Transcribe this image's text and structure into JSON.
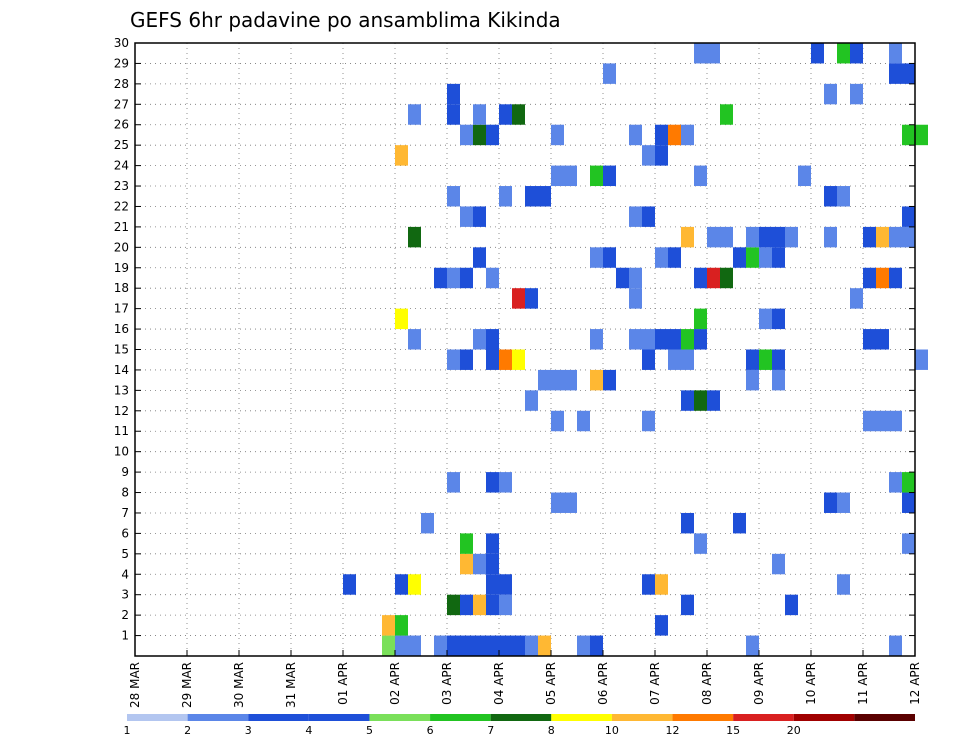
{
  "chart_data": {
    "type": "heatmap",
    "title": "GEFS 6hr padavine po ansamblima Kikinda",
    "xlabel": "",
    "ylabel": "",
    "x_start": "2025-03-28",
    "x_end": "2025-04-12",
    "x_tick_labels": [
      "28 MAR",
      "29 MAR",
      "30 MAR",
      "31 MAR",
      "01 APR",
      "02 APR",
      "03 APR",
      "04 APR",
      "05 APR",
      "06 APR",
      "07 APR",
      "08 APR",
      "09 APR",
      "10 APR",
      "11 APR",
      "12 APR"
    ],
    "y_tick_labels": [
      "1",
      "2",
      "3",
      "4",
      "5",
      "6",
      "7",
      "8",
      "9",
      "10",
      "11",
      "12",
      "13",
      "14",
      "15",
      "16",
      "17",
      "18",
      "19",
      "20",
      "21",
      "22",
      "23",
      "24",
      "25",
      "26",
      "27",
      "28",
      "29",
      "30"
    ],
    "ylim": [
      0,
      30
    ],
    "grid": true,
    "colorbar": {
      "labels": [
        "1",
        "2",
        "3",
        "4",
        "5",
        "6",
        "7",
        "8",
        "10",
        "12",
        "15",
        "20"
      ],
      "colors": [
        "#b3c6f0",
        "#5b86e8",
        "#1e4fd8",
        "#1e4fd8",
        "#7ae05a",
        "#22c422",
        "#116811",
        "#ffff00",
        "#ffb833",
        "#ff7a00",
        "#d92020",
        "#a00000",
        "#5a0000"
      ]
    },
    "cells": [
      {
        "t": "2025-04-01T18",
        "m": 0,
        "v": 4
      },
      {
        "t": "2025-04-02T00",
        "m": 0,
        "v": 1
      },
      {
        "t": "2025-04-02T06",
        "m": 0,
        "v": 1
      },
      {
        "t": "2025-04-02T18",
        "m": 0,
        "v": 1
      },
      {
        "t": "2025-04-03T00",
        "m": 0,
        "v": 2
      },
      {
        "t": "2025-04-03T06",
        "m": 0,
        "v": 3
      },
      {
        "t": "2025-04-03T12",
        "m": 0,
        "v": 3
      },
      {
        "t": "2025-04-03T18",
        "m": 0,
        "v": 3
      },
      {
        "t": "2025-04-04T00",
        "m": 0,
        "v": 2
      },
      {
        "t": "2025-04-04T06",
        "m": 0,
        "v": 3
      },
      {
        "t": "2025-04-04T12",
        "m": 0,
        "v": 1
      },
      {
        "t": "2025-04-04T18",
        "m": 0,
        "v": 9
      },
      {
        "t": "2025-04-05T12",
        "m": 0,
        "v": 1
      },
      {
        "t": "2025-04-05T18",
        "m": 0,
        "v": 2
      },
      {
        "t": "2025-04-08T18",
        "m": 0,
        "v": 1
      },
      {
        "t": "2025-04-11T12",
        "m": 0,
        "v": 1
      },
      {
        "t": "2025-04-01T18",
        "m": 1,
        "v": 9
      },
      {
        "t": "2025-04-02T00",
        "m": 1,
        "v": 5
      },
      {
        "t": "2025-04-07T00",
        "m": 1,
        "v": 3
      },
      {
        "t": "2025-04-03T00",
        "m": 2,
        "v": 6
      },
      {
        "t": "2025-04-03T06",
        "m": 2,
        "v": 2
      },
      {
        "t": "2025-04-03T12",
        "m": 2,
        "v": 9
      },
      {
        "t": "2025-04-03T18",
        "m": 2,
        "v": 3
      },
      {
        "t": "2025-04-04T00",
        "m": 2,
        "v": 1
      },
      {
        "t": "2025-04-07T12",
        "m": 2,
        "v": 2
      },
      {
        "t": "2025-04-09T12",
        "m": 2,
        "v": 2
      },
      {
        "t": "2025-04-01T00",
        "m": 3,
        "v": 2
      },
      {
        "t": "2025-04-02T00",
        "m": 3,
        "v": 2
      },
      {
        "t": "2025-04-02T06",
        "m": 3,
        "v": 7
      },
      {
        "t": "2025-04-03T18",
        "m": 3,
        "v": 2
      },
      {
        "t": "2025-04-04T00",
        "m": 3,
        "v": 2
      },
      {
        "t": "2025-04-06T18",
        "m": 3,
        "v": 3
      },
      {
        "t": "2025-04-07T00",
        "m": 3,
        "v": 9
      },
      {
        "t": "2025-04-10T12",
        "m": 3,
        "v": 1
      },
      {
        "t": "2025-04-03T06",
        "m": 4,
        "v": 8
      },
      {
        "t": "2025-04-03T12",
        "m": 4,
        "v": 1
      },
      {
        "t": "2025-04-03T18",
        "m": 4,
        "v": 2
      },
      {
        "t": "2025-04-09T06",
        "m": 4,
        "v": 1
      },
      {
        "t": "2025-04-03T06",
        "m": 5,
        "v": 5
      },
      {
        "t": "2025-04-03T18",
        "m": 5,
        "v": 2
      },
      {
        "t": "2025-04-07T18",
        "m": 5,
        "v": 1
      },
      {
        "t": "2025-04-11T18",
        "m": 5,
        "v": 1
      },
      {
        "t": "2025-04-02T12",
        "m": 6,
        "v": 1
      },
      {
        "t": "2025-04-07T12",
        "m": 6,
        "v": 3
      },
      {
        "t": "2025-04-08T12",
        "m": 6,
        "v": 3
      },
      {
        "t": "2025-04-05T00",
        "m": 7,
        "v": 1
      },
      {
        "t": "2025-04-05T06",
        "m": 7,
        "v": 1
      },
      {
        "t": "2025-04-10T06",
        "m": 7,
        "v": 3
      },
      {
        "t": "2025-04-10T12",
        "m": 7,
        "v": 1
      },
      {
        "t": "2025-04-11T18",
        "m": 7,
        "v": 2
      },
      {
        "t": "2025-04-03T00",
        "m": 8,
        "v": 1
      },
      {
        "t": "2025-04-03T18",
        "m": 8,
        "v": 3
      },
      {
        "t": "2025-04-04T00",
        "m": 8,
        "v": 1
      },
      {
        "t": "2025-04-11T12",
        "m": 8,
        "v": 1
      },
      {
        "t": "2025-04-11T18",
        "m": 8,
        "v": 5
      },
      {
        "t": "2025-04-05T12",
        "m": 11,
        "v": 1
      },
      {
        "t": "2025-04-05T00",
        "m": 11,
        "v": 1
      },
      {
        "t": "2025-04-06T18",
        "m": 11,
        "v": 1
      },
      {
        "t": "2025-04-11T00",
        "m": 11,
        "v": 1
      },
      {
        "t": "2025-04-11T06",
        "m": 11,
        "v": 1
      },
      {
        "t": "2025-04-11T12",
        "m": 11,
        "v": 1
      },
      {
        "t": "2025-04-04T12",
        "m": 12,
        "v": 1
      },
      {
        "t": "2025-04-07T12",
        "m": 12,
        "v": 3
      },
      {
        "t": "2025-04-07T18",
        "m": 12,
        "v": 6
      },
      {
        "t": "2025-04-08T00",
        "m": 12,
        "v": 3
      },
      {
        "t": "2025-04-04T18",
        "m": 13,
        "v": 1
      },
      {
        "t": "2025-04-05T00",
        "m": 13,
        "v": 1
      },
      {
        "t": "2025-04-05T06",
        "m": 13,
        "v": 1
      },
      {
        "t": "2025-04-05T18",
        "m": 13,
        "v": 8
      },
      {
        "t": "2025-04-06T00",
        "m": 13,
        "v": 3
      },
      {
        "t": "2025-04-08T18",
        "m": 13,
        "v": 1
      },
      {
        "t": "2025-04-09T06",
        "m": 13,
        "v": 1
      },
      {
        "t": "2025-04-03T00",
        "m": 14,
        "v": 1
      },
      {
        "t": "2025-04-03T06",
        "m": 14,
        "v": 2
      },
      {
        "t": "2025-04-03T18",
        "m": 14,
        "v": 2
      },
      {
        "t": "2025-04-04T00",
        "m": 14,
        "v": 10
      },
      {
        "t": "2025-04-04T06",
        "m": 14,
        "v": 7
      },
      {
        "t": "2025-04-06T18",
        "m": 14,
        "v": 2
      },
      {
        "t": "2025-04-07T06",
        "m": 14,
        "v": 1
      },
      {
        "t": "2025-04-07T12",
        "m": 14,
        "v": 1
      },
      {
        "t": "2025-04-08T18",
        "m": 14,
        "v": 2
      },
      {
        "t": "2025-04-09T00",
        "m": 14,
        "v": 5
      },
      {
        "t": "2025-04-09T06",
        "m": 14,
        "v": 3
      },
      {
        "t": "2025-04-12T00",
        "m": 14,
        "v": 1
      },
      {
        "t": "2025-04-02T06",
        "m": 15,
        "v": 1
      },
      {
        "t": "2025-04-03T12",
        "m": 15,
        "v": 1
      },
      {
        "t": "2025-04-03T18",
        "m": 15,
        "v": 2
      },
      {
        "t": "2025-04-05T18",
        "m": 15,
        "v": 1
      },
      {
        "t": "2025-04-06T12",
        "m": 15,
        "v": 1
      },
      {
        "t": "2025-04-06T18",
        "m": 15,
        "v": 1
      },
      {
        "t": "2025-04-07T00",
        "m": 15,
        "v": 2
      },
      {
        "t": "2025-04-07T06",
        "m": 15,
        "v": 3
      },
      {
        "t": "2025-04-07T12",
        "m": 15,
        "v": 5
      },
      {
        "t": "2025-04-07T18",
        "m": 15,
        "v": 3
      },
      {
        "t": "2025-04-11T00",
        "m": 15,
        "v": 2
      },
      {
        "t": "2025-04-11T06",
        "m": 15,
        "v": 2
      },
      {
        "t": "2025-04-02T00",
        "m": 16,
        "v": 7
      },
      {
        "t": "2025-04-07T18",
        "m": 16,
        "v": 5
      },
      {
        "t": "2025-04-09T00",
        "m": 16,
        "v": 1
      },
      {
        "t": "2025-04-09T06",
        "m": 16,
        "v": 2
      },
      {
        "t": "2025-04-04T06",
        "m": 17,
        "v": 13
      },
      {
        "t": "2025-04-04T12",
        "m": 17,
        "v": 3
      },
      {
        "t": "2025-04-06T12",
        "m": 17,
        "v": 1
      },
      {
        "t": "2025-04-10T18",
        "m": 17,
        "v": 1
      },
      {
        "t": "2025-04-02T18",
        "m": 18,
        "v": 2
      },
      {
        "t": "2025-04-03T00",
        "m": 18,
        "v": 1
      },
      {
        "t": "2025-04-03T06",
        "m": 18,
        "v": 2
      },
      {
        "t": "2025-04-03T18",
        "m": 18,
        "v": 1
      },
      {
        "t": "2025-04-06T06",
        "m": 18,
        "v": 3
      },
      {
        "t": "2025-04-06T12",
        "m": 18,
        "v": 1
      },
      {
        "t": "2025-04-07T18",
        "m": 18,
        "v": 2
      },
      {
        "t": "2025-04-08T00",
        "m": 18,
        "v": 13
      },
      {
        "t": "2025-04-08T06",
        "m": 18,
        "v": 6
      },
      {
        "t": "2025-04-11T00",
        "m": 18,
        "v": 2
      },
      {
        "t": "2025-04-11T06",
        "m": 18,
        "v": 10
      },
      {
        "t": "2025-04-11T12",
        "m": 18,
        "v": 3
      },
      {
        "t": "2025-04-03T12",
        "m": 19,
        "v": 2
      },
      {
        "t": "2025-04-05T18",
        "m": 19,
        "v": 1
      },
      {
        "t": "2025-04-06T00",
        "m": 19,
        "v": 3
      },
      {
        "t": "2025-04-07T00",
        "m": 19,
        "v": 1
      },
      {
        "t": "2025-04-07T06",
        "m": 19,
        "v": 2
      },
      {
        "t": "2025-04-08T12",
        "m": 19,
        "v": 3
      },
      {
        "t": "2025-04-08T18",
        "m": 19,
        "v": 5
      },
      {
        "t": "2025-04-09T00",
        "m": 19,
        "v": 1
      },
      {
        "t": "2025-04-09T06",
        "m": 19,
        "v": 2
      },
      {
        "t": "2025-04-02T06",
        "m": 20,
        "v": 6
      },
      {
        "t": "2025-04-07T12",
        "m": 20,
        "v": 9
      },
      {
        "t": "2025-04-08T00",
        "m": 20,
        "v": 1
      },
      {
        "t": "2025-04-08T06",
        "m": 20,
        "v": 1
      },
      {
        "t": "2025-04-08T18",
        "m": 20,
        "v": 1
      },
      {
        "t": "2025-04-09T00",
        "m": 20,
        "v": 3
      },
      {
        "t": "2025-04-09T06",
        "m": 20,
        "v": 2
      },
      {
        "t": "2025-04-09T12",
        "m": 20,
        "v": 1
      },
      {
        "t": "2025-04-10T06",
        "m": 20,
        "v": 1
      },
      {
        "t": "2025-04-11T00",
        "m": 20,
        "v": 2
      },
      {
        "t": "2025-04-11T06",
        "m": 20,
        "v": 8
      },
      {
        "t": "2025-04-11T12",
        "m": 20,
        "v": 1
      },
      {
        "t": "2025-04-11T18",
        "m": 20,
        "v": 1
      },
      {
        "t": "2025-04-03T06",
        "m": 21,
        "v": 1
      },
      {
        "t": "2025-04-03T12",
        "m": 21,
        "v": 3
      },
      {
        "t": "2025-04-06T12",
        "m": 21,
        "v": 1
      },
      {
        "t": "2025-04-06T18",
        "m": 21,
        "v": 2
      },
      {
        "t": "2025-04-11T18",
        "m": 21,
        "v": 2
      },
      {
        "t": "2025-04-03T00",
        "m": 22,
        "v": 1
      },
      {
        "t": "2025-04-04T00",
        "m": 22,
        "v": 1
      },
      {
        "t": "2025-04-04T12",
        "m": 22,
        "v": 2
      },
      {
        "t": "2025-04-04T18",
        "m": 22,
        "v": 2
      },
      {
        "t": "2025-04-10T06",
        "m": 22,
        "v": 3
      },
      {
        "t": "2025-04-10T12",
        "m": 22,
        "v": 1
      },
      {
        "t": "2025-04-05T00",
        "m": 23,
        "v": 1
      },
      {
        "t": "2025-04-05T06",
        "m": 23,
        "v": 1
      },
      {
        "t": "2025-04-05T18",
        "m": 23,
        "v": 5
      },
      {
        "t": "2025-04-06T00",
        "m": 23,
        "v": 2
      },
      {
        "t": "2025-04-07T18",
        "m": 23,
        "v": 1
      },
      {
        "t": "2025-04-09T18",
        "m": 23,
        "v": 1
      },
      {
        "t": "2025-04-02T00",
        "m": 24,
        "v": 9
      },
      {
        "t": "2025-04-06T18",
        "m": 24,
        "v": 1
      },
      {
        "t": "2025-04-07T00",
        "m": 24,
        "v": 2
      },
      {
        "t": "2025-04-03T06",
        "m": 25,
        "v": 1
      },
      {
        "t": "2025-04-03T12",
        "m": 25,
        "v": 6
      },
      {
        "t": "2025-04-03T18",
        "m": 25,
        "v": 2
      },
      {
        "t": "2025-04-05T00",
        "m": 25,
        "v": 1
      },
      {
        "t": "2025-04-06T12",
        "m": 25,
        "v": 1
      },
      {
        "t": "2025-04-07T00",
        "m": 25,
        "v": 2
      },
      {
        "t": "2025-04-07T06",
        "m": 25,
        "v": 10
      },
      {
        "t": "2025-04-07T12",
        "m": 25,
        "v": 1
      },
      {
        "t": "2025-04-11T18",
        "m": 25,
        "v": 5
      },
      {
        "t": "2025-04-12T00",
        "m": 25,
        "v": 5
      },
      {
        "t": "2025-04-02T06",
        "m": 26,
        "v": 1
      },
      {
        "t": "2025-04-03T00",
        "m": 26,
        "v": 2
      },
      {
        "t": "2025-04-03T12",
        "m": 26,
        "v": 1
      },
      {
        "t": "2025-04-04T00",
        "m": 26,
        "v": 2
      },
      {
        "t": "2025-04-04T06",
        "m": 26,
        "v": 6
      },
      {
        "t": "2025-04-08T06",
        "m": 26,
        "v": 5
      },
      {
        "t": "2025-04-03T00",
        "m": 27,
        "v": 3
      },
      {
        "t": "2025-04-10T06",
        "m": 27,
        "v": 1
      },
      {
        "t": "2025-04-10T18",
        "m": 27,
        "v": 1
      },
      {
        "t": "2025-04-06T00",
        "m": 28,
        "v": 1
      },
      {
        "t": "2025-04-11T12",
        "m": 28,
        "v": 2
      },
      {
        "t": "2025-04-11T18",
        "m": 28,
        "v": 2
      },
      {
        "t": "2025-04-07T18",
        "m": 29,
        "v": 1
      },
      {
        "t": "2025-04-08T00",
        "m": 29,
        "v": 1
      },
      {
        "t": "2025-04-10T00",
        "m": 29,
        "v": 3
      },
      {
        "t": "2025-04-10T12",
        "m": 29,
        "v": 5
      },
      {
        "t": "2025-04-10T18",
        "m": 29,
        "v": 2
      },
      {
        "t": "2025-04-11T12",
        "m": 29,
        "v": 1
      }
    ]
  }
}
